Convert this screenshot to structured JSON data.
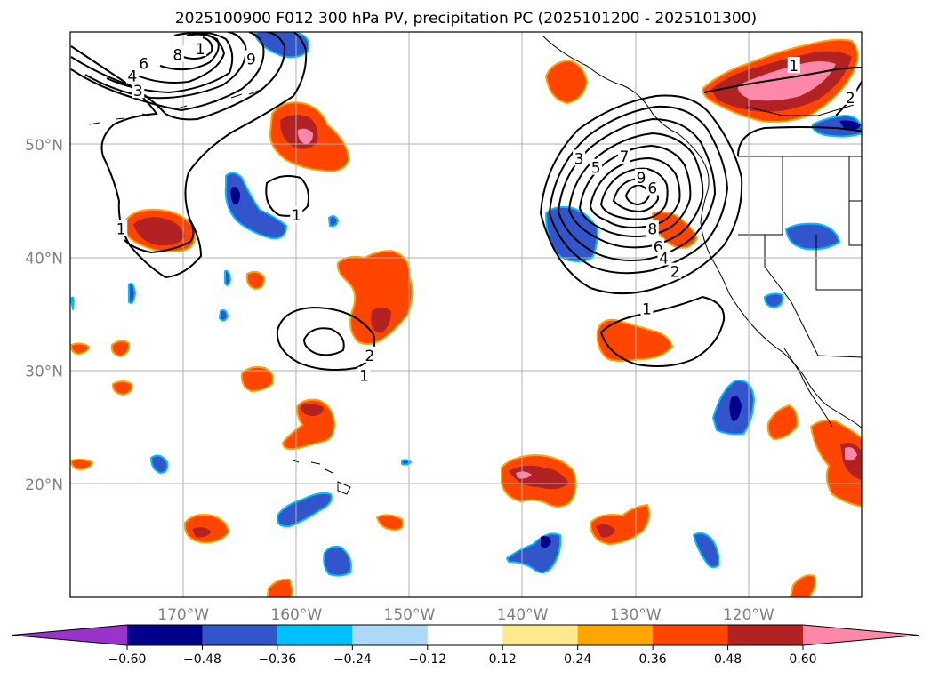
{
  "chart_data": {
    "type": "map-contour",
    "title": "2025100900 F012 300 hPa PV, precipitation PC (2025101200 - 2025101300)",
    "lon_range": [
      -180,
      -110
    ],
    "lat_range": [
      10,
      60
    ],
    "lon_ticks": [
      {
        "value": -170,
        "label": "170°W"
      },
      {
        "value": -160,
        "label": "160°W"
      },
      {
        "value": -150,
        "label": "150°W"
      },
      {
        "value": -140,
        "label": "140°W"
      },
      {
        "value": -130,
        "label": "130°W"
      },
      {
        "value": -120,
        "label": "120°W"
      }
    ],
    "lat_ticks": [
      {
        "value": 20,
        "label": "20°N"
      },
      {
        "value": 30,
        "label": "30°N"
      },
      {
        "value": 40,
        "label": "40°N"
      },
      {
        "value": 50,
        "label": "50°N"
      }
    ],
    "grid": true,
    "colorbar": {
      "orientation": "horizontal",
      "extend": "both",
      "levels": [
        -0.6,
        -0.48,
        -0.36,
        -0.24,
        -0.12,
        0.12,
        0.24,
        0.36,
        0.48,
        0.6
      ],
      "tick_labels": [
        "−0.60",
        "−0.48",
        "−0.36",
        "−0.24",
        "−0.12",
        "0.12",
        "0.24",
        "0.36",
        "0.48",
        "0.60"
      ],
      "colors": [
        "#9933cc",
        "#00008b",
        "#3355cc",
        "#00bfff",
        "#add8f7",
        "#ffffff",
        "#ffe98f",
        "#ffa500",
        "#ff4500",
        "#b22222",
        "#ff88aa"
      ]
    },
    "pv_contours": [
      {
        "label": "1",
        "lon": -168.5,
        "lat": 58.5
      },
      {
        "label": "8",
        "lon": -170.5,
        "lat": 58.0
      },
      {
        "label": "9",
        "lon": -164.0,
        "lat": 57.6
      },
      {
        "label": "6",
        "lon": -173.5,
        "lat": 57.2
      },
      {
        "label": "4",
        "lon": -174.5,
        "lat": 56.1
      },
      {
        "label": "3",
        "lon": -174.0,
        "lat": 54.8
      },
      {
        "label": "1",
        "lon": -175.5,
        "lat": 42.6
      },
      {
        "label": "1",
        "lon": -160.0,
        "lat": 43.8
      },
      {
        "label": "2",
        "lon": -153.5,
        "lat": 31.4
      },
      {
        "label": "1",
        "lon": -154.0,
        "lat": 29.6
      },
      {
        "label": "3",
        "lon": -135.0,
        "lat": 48.8
      },
      {
        "label": "5",
        "lon": -133.5,
        "lat": 48.0
      },
      {
        "label": "7",
        "lon": -131.0,
        "lat": 49.0
      },
      {
        "label": "9",
        "lon": -129.5,
        "lat": 47.1
      },
      {
        "label": "6",
        "lon": -128.5,
        "lat": 46.2
      },
      {
        "label": "8",
        "lon": -128.5,
        "lat": 42.6
      },
      {
        "label": "6",
        "lon": -128.0,
        "lat": 41.0
      },
      {
        "label": "4",
        "lon": -127.5,
        "lat": 40.0
      },
      {
        "label": "2",
        "lon": -126.5,
        "lat": 38.8
      },
      {
        "label": "1",
        "lon": -129.0,
        "lat": 35.5
      },
      {
        "label": "1",
        "lon": -116.0,
        "lat": 57.0
      },
      {
        "label": "2",
        "lon": -111.0,
        "lat": 54.2
      }
    ]
  }
}
